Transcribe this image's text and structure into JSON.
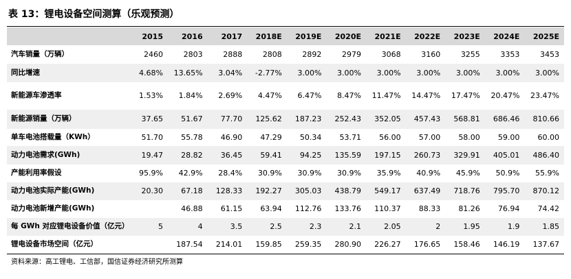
{
  "title": "表 13：锂电设备空间测算（乐观预测）",
  "table": {
    "header": [
      "2015",
      "2016",
      "2017",
      "2018E",
      "2019E",
      "2020E",
      "2021E",
      "2022E",
      "2023E",
      "2024E",
      "2025E"
    ],
    "rows": [
      {
        "label": "汽车销量（万辆）",
        "values": [
          "2460",
          "2803",
          "2888",
          "2808",
          "2892",
          "2979",
          "3068",
          "3160",
          "3255",
          "3353",
          "3453"
        ]
      },
      {
        "label": "同比增速",
        "values": [
          "4.68%",
          "13.65%",
          "3.04%",
          "-2.77%",
          "3.00%",
          "3.00%",
          "3.00%",
          "3.00%",
          "3.00%",
          "3.00%",
          "3.00%"
        ]
      },
      {
        "label": "新能源车渗透率",
        "values": [
          "1.53%",
          "1.84%",
          "2.69%",
          "4.47%",
          "6.47%",
          "8.47%",
          "11.47%",
          "14.47%",
          "17.47%",
          "20.47%",
          "23.47%"
        ]
      },
      {
        "label": "新能源销量（万辆）",
        "values": [
          "37.65",
          "51.67",
          "77.70",
          "125.62",
          "187.23",
          "252.43",
          "352.05",
          "457.43",
          "568.81",
          "686.46",
          "810.66"
        ]
      },
      {
        "label": "单车电池搭载量（KWh）",
        "values": [
          "51.70",
          "55.78",
          "46.90",
          "47.29",
          "50.34",
          "53.71",
          "56.00",
          "57.00",
          "58.00",
          "59.00",
          "60.00"
        ]
      },
      {
        "label": "动力电池需求(GWh)",
        "values": [
          "19.47",
          "28.82",
          "36.45",
          "59.41",
          "94.25",
          "135.59",
          "197.15",
          "260.73",
          "329.91",
          "405.01",
          "486.40"
        ]
      },
      {
        "label": "产能利用率假设",
        "values": [
          "95.9%",
          "42.9%",
          "28.4%",
          "30.9%",
          "30.9%",
          "30.9%",
          "35.9%",
          "40.9%",
          "45.9%",
          "50.9%",
          "55.9%"
        ]
      },
      {
        "label": "动力电池实际产能(GWh)",
        "values": [
          "20.30",
          "67.18",
          "128.33",
          "192.27",
          "305.03",
          "438.79",
          "549.17",
          "637.49",
          "718.76",
          "795.70",
          "870.12"
        ]
      },
      {
        "label": "动力电池新增产能(GWh)",
        "values": [
          null,
          "46.88",
          "61.15",
          "63.94",
          "112.76",
          "133.76",
          "110.37",
          "88.33",
          "81.26",
          "76.94",
          "74.42"
        ]
      },
      {
        "label": "每 GWh 对应锂电设备价值（亿元）",
        "values": [
          "5",
          "4",
          "3.5",
          "2.5",
          "2.3",
          "2.1",
          "2.05",
          "2",
          "1.95",
          "1.9",
          "1.85"
        ]
      },
      {
        "label": "锂电设备市场空间（亿元）",
        "values": [
          null,
          "187.54",
          "214.01",
          "159.85",
          "259.35",
          "280.90",
          "226.27",
          "176.65",
          "158.46",
          "146.19",
          "137.67"
        ]
      }
    ]
  },
  "source": "资料来源：高工锂电、工信部，国信证券经济研究所测算"
}
